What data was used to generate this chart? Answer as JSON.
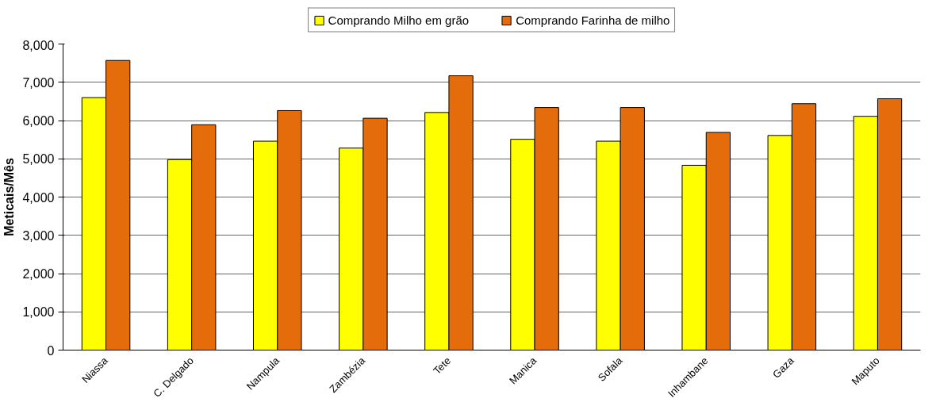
{
  "chart_data": {
    "type": "bar",
    "ylabel": "Meticais/Mês",
    "categories": [
      "Niassa",
      "C. Delgado",
      "Nampula",
      "Zambézia",
      "Tete",
      "Manica",
      "Sofala",
      "Inhambane",
      "Gaza",
      "Maputo"
    ],
    "series": [
      {
        "name": "Comprando Milho em grão",
        "color": "#ffff00",
        "values": [
          6600,
          4980,
          5460,
          5280,
          6210,
          5510,
          5460,
          4830,
          5610,
          6110
        ]
      },
      {
        "name": "Comprando Farinha de milho",
        "color": "#e46c0a",
        "values": [
          7570,
          5890,
          6260,
          6060,
          7170,
          6340,
          6340,
          5690,
          6440,
          6570
        ]
      }
    ],
    "ylim": [
      0,
      8000
    ],
    "yticks": [
      {
        "value": 0,
        "label": "0"
      },
      {
        "value": 1000,
        "label": "1,000"
      },
      {
        "value": 2000,
        "label": "2,000"
      },
      {
        "value": 3000,
        "label": "3,000"
      },
      {
        "value": 4000,
        "label": "4,000"
      },
      {
        "value": 5000,
        "label": "5,000"
      },
      {
        "value": 6000,
        "label": "6,000"
      },
      {
        "value": 7000,
        "label": "7,000"
      },
      {
        "value": 8000,
        "label": "8,000"
      }
    ],
    "grid": "y",
    "legend": "top"
  }
}
